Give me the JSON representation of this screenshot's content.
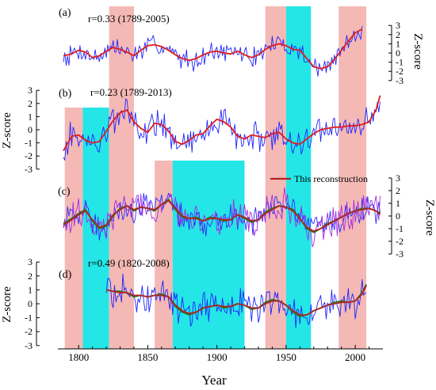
{
  "chart_data": {
    "type": "line",
    "xlabel": "Year",
    "ylabel": "Z-score",
    "xlim": [
      1785,
      2020
    ],
    "x_ticks": [
      "1800",
      "1850",
      "1900",
      "1950",
      "2000"
    ],
    "legend": {
      "label": "This reconstruction",
      "color": "#b22222",
      "placement": "upper-right of panel (c)"
    },
    "shaded_periods": [
      {
        "color": "#f4b9b5",
        "period": [
          1790,
          1803
        ]
      },
      {
        "color": "#24e6e6",
        "period": [
          1803,
          1822
        ]
      },
      {
        "color": "#f4b9b5",
        "period": [
          1822,
          1840
        ]
      },
      {
        "color": "#f4b9b5",
        "period": [
          1855,
          1868
        ]
      },
      {
        "color": "#24e6e6",
        "period": [
          1868,
          1920
        ]
      },
      {
        "color": "#f4b9b5",
        "period": [
          1935,
          1950
        ]
      },
      {
        "color": "#24e6e6",
        "period": [
          1950,
          1968
        ]
      },
      {
        "color": "#f4b9b5",
        "period": [
          1988,
          2008
        ]
      }
    ],
    "panels": [
      {
        "label": "(a)",
        "annotation": "r=0.33 (1789-2005)",
        "axis_side": "right",
        "ylim": [
          -3,
          3
        ],
        "y_ticks": [
          "-3",
          "-2",
          "-1",
          "0",
          "1",
          "2",
          "3"
        ],
        "series": [
          {
            "color": "#1f24ff",
            "kind": "raw",
            "range": [
              1789,
              2005
            ]
          },
          {
            "color": "#e11b1b",
            "kind": "smooth",
            "range": [
              1789,
              2005
            ],
            "x": [
              1789,
              1795,
              1800,
              1805,
              1810,
              1815,
              1820,
              1825,
              1830,
              1835,
              1840,
              1845,
              1850,
              1855,
              1860,
              1865,
              1870,
              1875,
              1880,
              1885,
              1890,
              1895,
              1900,
              1905,
              1910,
              1915,
              1920,
              1925,
              1930,
              1935,
              1940,
              1945,
              1950,
              1955,
              1960,
              1965,
              1970,
              1975,
              1980,
              1985,
              1990,
              1995,
              2000,
              2005
            ],
            "y": [
              -0.3,
              -0.1,
              0.3,
              0.1,
              -0.5,
              -0.3,
              0.2,
              0.6,
              0.4,
              0.1,
              -0.3,
              0.3,
              0.8,
              0.9,
              0.7,
              0.3,
              -0.2,
              -0.6,
              -0.8,
              -0.6,
              -0.2,
              0.1,
              0.2,
              0.0,
              -0.1,
              0.2,
              -0.2,
              -0.5,
              -0.2,
              0.4,
              0.8,
              1.0,
              0.8,
              0.4,
              0.3,
              -0.6,
              -1.5,
              -1.7,
              -1.5,
              -0.7,
              0.3,
              1.3,
              2.2,
              2.6
            ]
          }
        ]
      },
      {
        "label": "(b)",
        "annotation": "r=0.23 (1789-2013)",
        "axis_side": "left",
        "ylim": [
          -3,
          3
        ],
        "y_ticks": [
          "-3",
          "-2",
          "-1",
          "0",
          "1",
          "2",
          "3"
        ],
        "series": [
          {
            "color": "#1f24ff",
            "kind": "raw",
            "range": [
              1789,
              2018
            ]
          },
          {
            "color": "#e11b1b",
            "kind": "smooth",
            "range": [
              1789,
              2018
            ],
            "x": [
              1789,
              1795,
              1800,
              1805,
              1810,
              1815,
              1820,
              1825,
              1830,
              1835,
              1840,
              1845,
              1850,
              1855,
              1860,
              1865,
              1870,
              1875,
              1880,
              1885,
              1890,
              1895,
              1900,
              1905,
              1910,
              1915,
              1920,
              1925,
              1930,
              1935,
              1940,
              1945,
              1950,
              1955,
              1960,
              1965,
              1970,
              1975,
              1980,
              1985,
              1990,
              1995,
              2000,
              2005,
              2010,
              2015,
              2018
            ],
            "y": [
              -1.6,
              -0.5,
              -0.4,
              -0.8,
              -1.0,
              -0.9,
              -0.1,
              0.7,
              1.3,
              1.5,
              0.6,
              0.1,
              -0.2,
              0.5,
              0.4,
              -0.1,
              -0.9,
              -1.1,
              -0.8,
              -0.4,
              -0.3,
              0.3,
              0.8,
              0.6,
              0.2,
              -0.5,
              -0.7,
              -0.4,
              -0.5,
              -0.6,
              -0.3,
              -0.2,
              -0.7,
              -1.0,
              -1.1,
              -0.7,
              -0.3,
              0.0,
              0.1,
              0.2,
              0.2,
              0.3,
              0.3,
              0.4,
              0.6,
              1.5,
              2.6
            ]
          }
        ]
      },
      {
        "label": "(c)",
        "annotation": "",
        "axis_side": "right",
        "ylim": [
          -3,
          3
        ],
        "y_ticks": [
          "-3",
          "-2",
          "-1",
          "0",
          "1",
          "2",
          "3"
        ],
        "series": [
          {
            "color": "#2a2aff",
            "kind": "raw",
            "range": [
              1789,
              2018
            ]
          },
          {
            "color": "#a32be0",
            "kind": "raw2",
            "range": [
              1789,
              2018
            ]
          },
          {
            "color": "#237523",
            "kind": "smooth",
            "range": [
              1789,
              2018
            ],
            "x": [
              1789,
              1795,
              1800,
              1805,
              1810,
              1815,
              1820,
              1825,
              1830,
              1835,
              1840,
              1845,
              1850,
              1855,
              1860,
              1865,
              1870,
              1875,
              1880,
              1885,
              1890,
              1895,
              1900,
              1905,
              1910,
              1915,
              1920,
              1925,
              1930,
              1935,
              1940,
              1945,
              1950,
              1955,
              1960,
              1965,
              1970,
              1975,
              1980,
              1985,
              1990,
              1995,
              2000,
              2005,
              2010,
              2015,
              2018
            ],
            "y": [
              -0.6,
              -0.2,
              0.2,
              0.5,
              -0.4,
              -1.0,
              -0.8,
              0.0,
              0.6,
              0.8,
              0.4,
              0.7,
              0.6,
              0.4,
              0.9,
              1.3,
              0.5,
              -0.1,
              -0.2,
              -0.1,
              -0.4,
              -0.1,
              -0.2,
              -0.4,
              -0.3,
              0.1,
              -0.2,
              -0.5,
              -0.3,
              0.3,
              0.6,
              0.8,
              0.7,
              0.5,
              -0.2,
              -1.0,
              -1.3,
              -1.0,
              -0.6,
              -0.4,
              -0.1,
              0.2,
              0.4,
              0.6,
              0.6,
              0.4,
              0.2
            ]
          },
          {
            "color": "#b22222",
            "kind": "smooth2",
            "range": [
              1789,
              2018
            ],
            "x": [
              1789,
              1795,
              1800,
              1805,
              1810,
              1815,
              1820,
              1825,
              1830,
              1835,
              1840,
              1845,
              1850,
              1855,
              1860,
              1865,
              1870,
              1875,
              1880,
              1885,
              1890,
              1895,
              1900,
              1905,
              1910,
              1915,
              1920,
              1925,
              1930,
              1935,
              1940,
              1945,
              1950,
              1955,
              1960,
              1965,
              1970,
              1975,
              1980,
              1985,
              1990,
              1995,
              2000,
              2005,
              2010,
              2015,
              2018
            ],
            "y": [
              -0.7,
              -0.3,
              0.1,
              0.4,
              -0.3,
              -0.9,
              -0.7,
              0.1,
              0.5,
              0.8,
              0.5,
              0.7,
              0.6,
              0.5,
              0.9,
              1.2,
              0.6,
              0.0,
              -0.2,
              -0.2,
              -0.4,
              -0.2,
              -0.2,
              -0.3,
              -0.3,
              0.1,
              -0.1,
              -0.4,
              -0.3,
              0.2,
              0.5,
              0.8,
              0.7,
              0.4,
              -0.2,
              -0.9,
              -1.2,
              -1.0,
              -0.7,
              -0.4,
              -0.1,
              0.2,
              0.4,
              0.5,
              0.6,
              0.4,
              0.1
            ]
          }
        ]
      },
      {
        "label": "(d)",
        "annotation": "r=0.49 (1820-2008)",
        "axis_side": "left",
        "ylim": [
          -3,
          3
        ],
        "y_ticks": [
          "-3",
          "-2",
          "-1",
          "0",
          "1",
          "2",
          "3"
        ],
        "series": [
          {
            "color": "#1f24ff",
            "kind": "raw",
            "range": [
              1820,
              2008
            ]
          },
          {
            "color": "#237523",
            "kind": "smooth",
            "range": [
              1820,
              2008
            ],
            "x": [
              1820,
              1825,
              1830,
              1835,
              1840,
              1845,
              1850,
              1855,
              1860,
              1865,
              1870,
              1875,
              1880,
              1885,
              1890,
              1895,
              1900,
              1905,
              1910,
              1915,
              1920,
              1925,
              1930,
              1935,
              1940,
              1945,
              1950,
              1955,
              1960,
              1965,
              1970,
              1975,
              1980,
              1985,
              1990,
              1995,
              2000,
              2005,
              2008
            ],
            "y": [
              1.0,
              0.9,
              0.9,
              0.8,
              0.5,
              0.6,
              0.5,
              0.6,
              0.7,
              0.5,
              -0.2,
              -0.6,
              -0.8,
              -0.6,
              -0.3,
              -0.2,
              -0.1,
              -0.3,
              -0.2,
              0.0,
              -0.1,
              -0.4,
              -0.3,
              0.1,
              0.3,
              0.2,
              -0.1,
              -0.6,
              -0.9,
              -0.8,
              -0.5,
              -0.3,
              -0.1,
              0.1,
              0.2,
              0.1,
              0.2,
              0.8,
              1.4
            ]
          },
          {
            "color": "#b22222",
            "kind": "smooth2",
            "range": [
              1820,
              2008
            ],
            "x": [
              1820,
              1825,
              1830,
              1835,
              1840,
              1845,
              1850,
              1855,
              1860,
              1865,
              1870,
              1875,
              1880,
              1885,
              1890,
              1895,
              1900,
              1905,
              1910,
              1915,
              1920,
              1925,
              1930,
              1935,
              1940,
              1945,
              1950,
              1955,
              1960,
              1965,
              1970,
              1975,
              1980,
              1985,
              1990,
              1995,
              2000,
              2005,
              2008
            ],
            "y": [
              1.0,
              0.9,
              0.8,
              0.8,
              0.6,
              0.6,
              0.5,
              0.6,
              0.6,
              0.5,
              -0.1,
              -0.5,
              -0.7,
              -0.6,
              -0.3,
              -0.2,
              -0.1,
              -0.2,
              -0.2,
              0.0,
              -0.1,
              -0.3,
              -0.3,
              0.0,
              0.2,
              0.2,
              -0.1,
              -0.5,
              -0.8,
              -0.8,
              -0.5,
              -0.3,
              -0.1,
              0.0,
              0.1,
              0.1,
              0.2,
              0.7,
              1.3
            ]
          }
        ]
      }
    ]
  }
}
